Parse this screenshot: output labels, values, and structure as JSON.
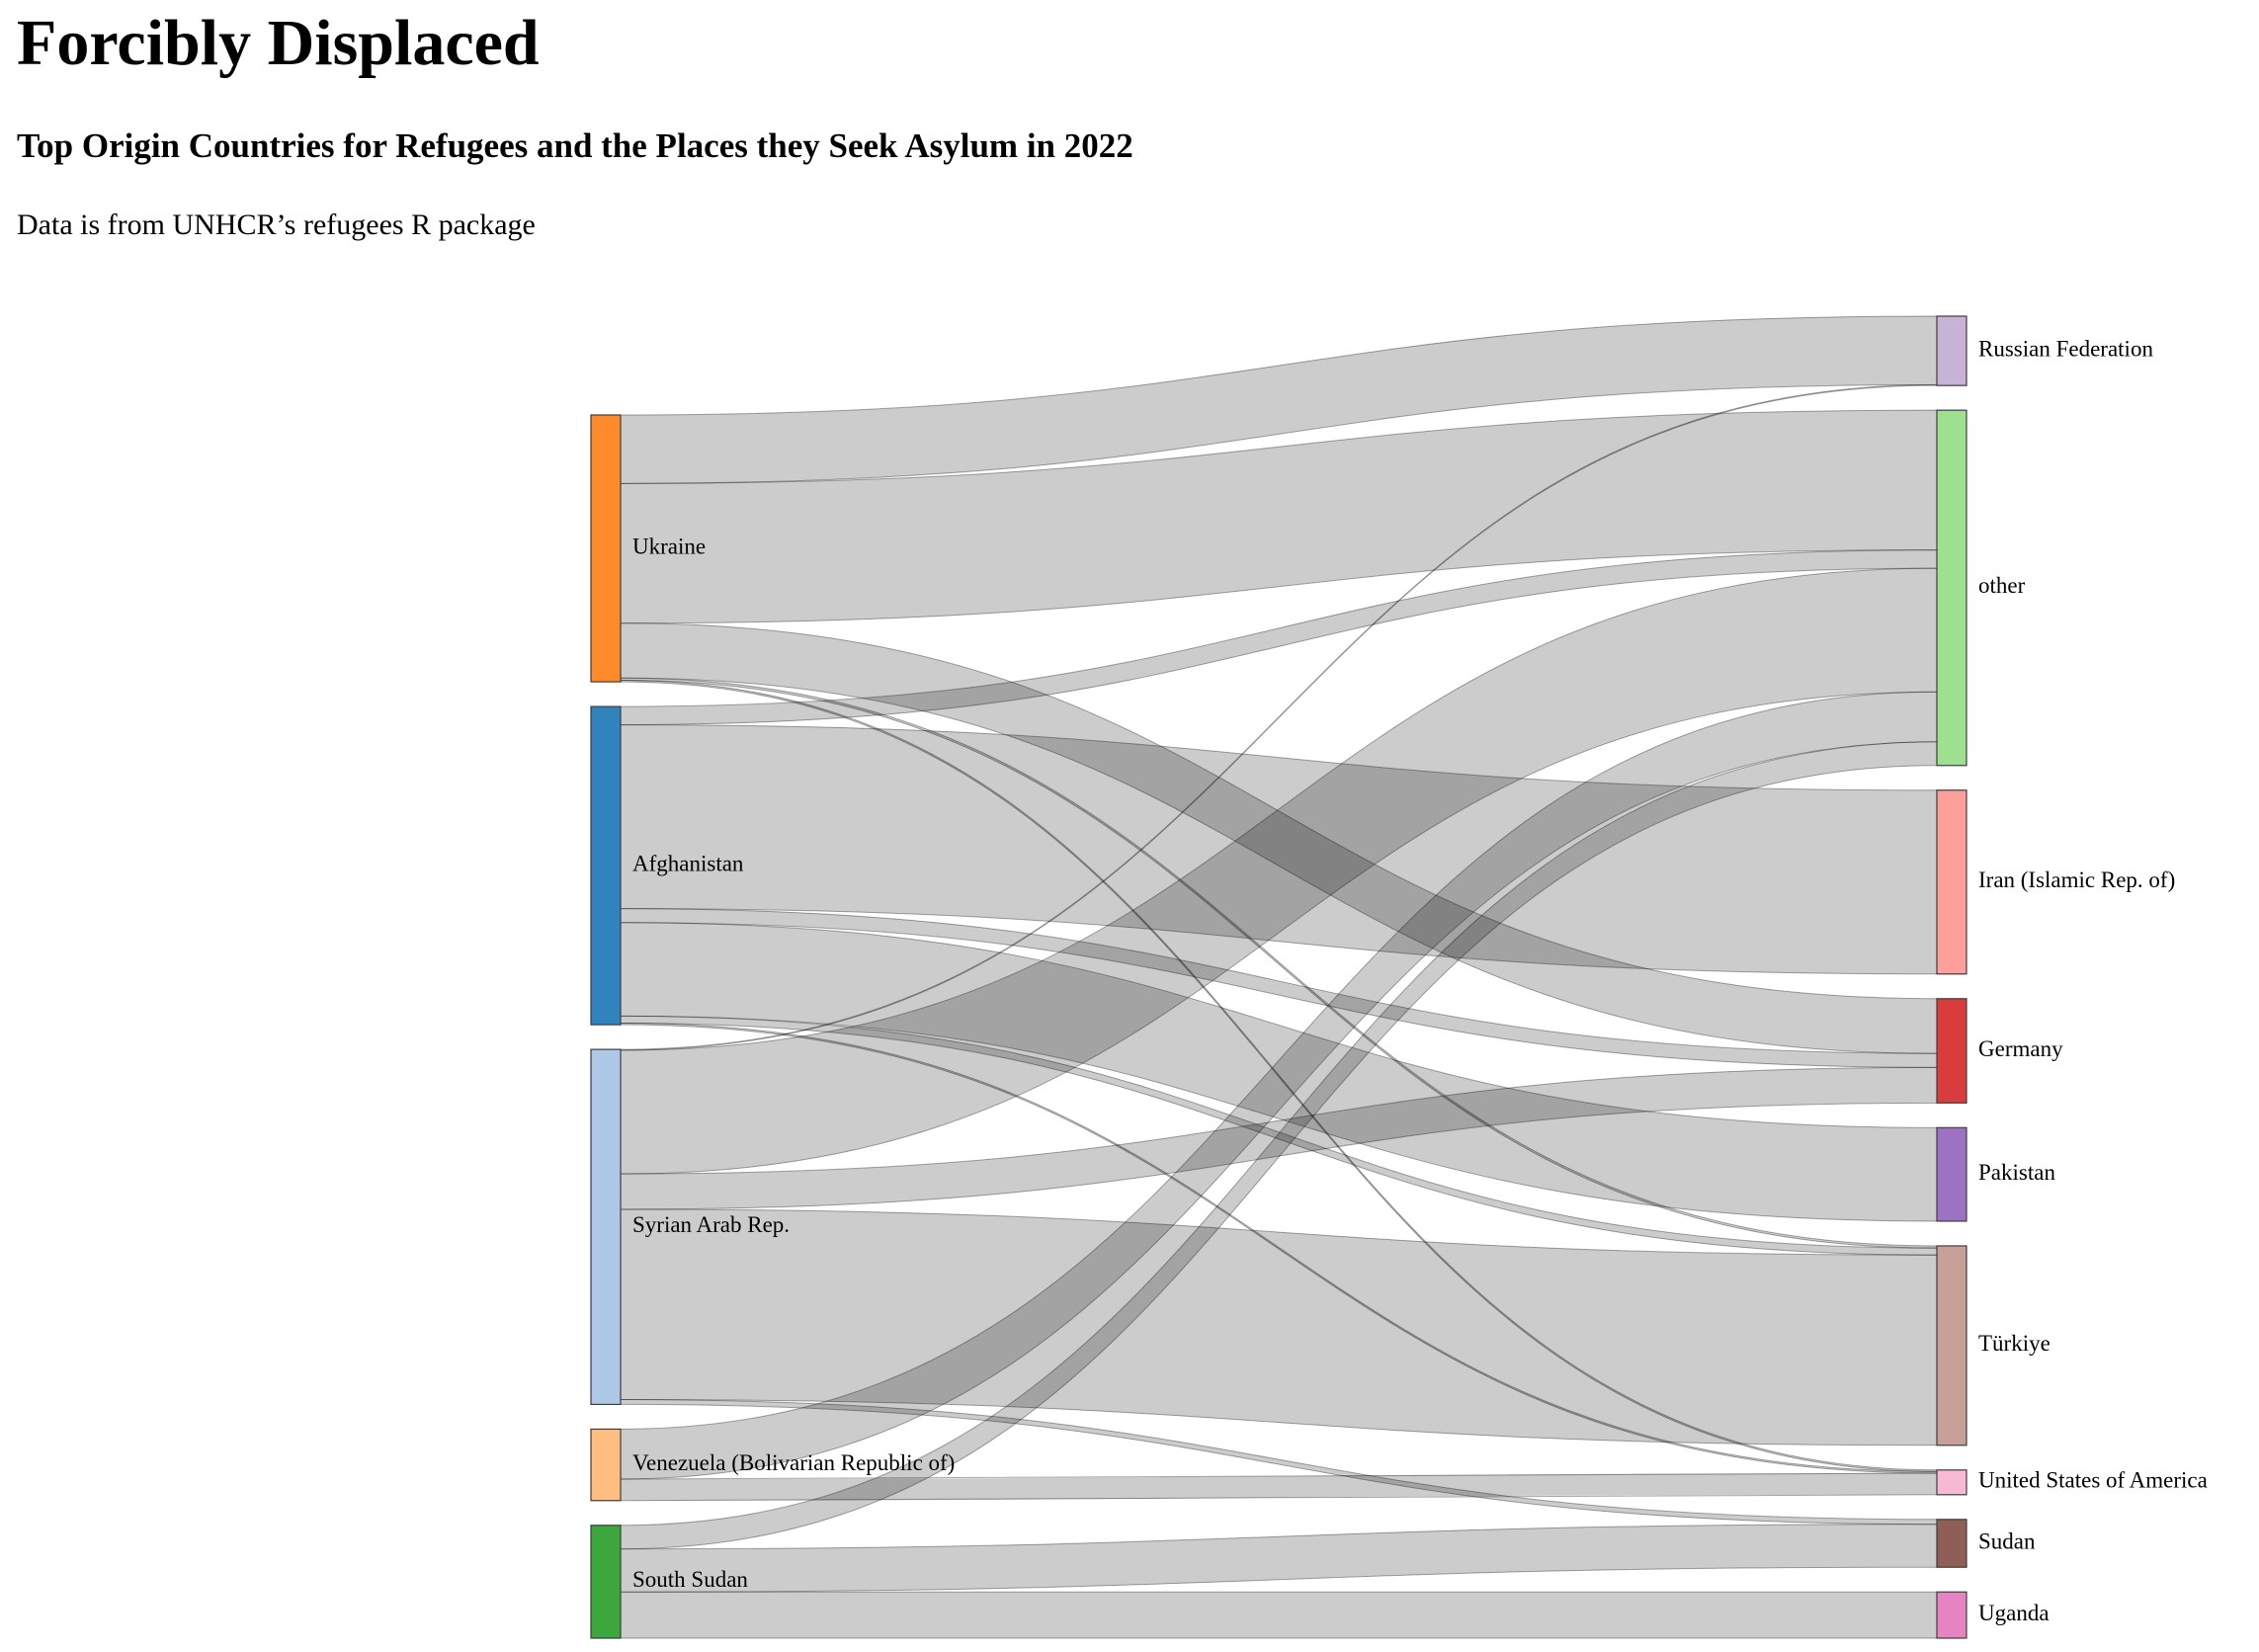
{
  "title": "Forcibly Displaced",
  "subtitle": "Top Origin Countries for Refugees and the Places they Seek Asylum in 2022",
  "caption": "Data is from UNHCR’s refugees R package",
  "chart_data": {
    "type": "sankey",
    "unit": "thousand people (approximate)",
    "sources": [
      {
        "name": "Ukraine",
        "color": "#ff8a2a"
      },
      {
        "name": "Afghanistan",
        "color": "#3183be"
      },
      {
        "name": "Syrian Arab Rep.",
        "color": "#aec9e8"
      },
      {
        "name": "Venezuela (Bolivarian Republic of)",
        "color": "#ffbd7f"
      },
      {
        "name": "South Sudan",
        "color": "#3ca73c"
      }
    ],
    "destinations": [
      {
        "name": "Russian Federation",
        "color": "#c7b3d5"
      },
      {
        "name": "other",
        "color": "#9ee08f"
      },
      {
        "name": "Iran (Islamic Rep. of)",
        "color": "#ff9f9b"
      },
      {
        "name": "Germany",
        "color": "#d83c3c"
      },
      {
        "name": "Pakistan",
        "color": "#9d72c5"
      },
      {
        "name": "Türkiye",
        "color": "#c7a097"
      },
      {
        "name": "United States of America",
        "color": "#f7b9d4"
      },
      {
        "name": "Sudan",
        "color": "#8f5e56"
      },
      {
        "name": "Uganda",
        "color": "#e683c3"
      }
    ],
    "links": [
      {
        "source": "Ukraine",
        "target": "Russian Federation",
        "value": 1275
      },
      {
        "source": "Ukraine",
        "target": "other",
        "value": 2600
      },
      {
        "source": "Ukraine",
        "target": "Germany",
        "value": 1020
      },
      {
        "source": "Ukraine",
        "target": "Türkiye",
        "value": 40
      },
      {
        "source": "Ukraine",
        "target": "United States of America",
        "value": 30
      },
      {
        "source": "Afghanistan",
        "target": "other",
        "value": 340
      },
      {
        "source": "Afghanistan",
        "target": "Iran (Islamic Rep. of)",
        "value": 3420
      },
      {
        "source": "Afghanistan",
        "target": "Germany",
        "value": 260
      },
      {
        "source": "Afghanistan",
        "target": "Pakistan",
        "value": 1740
      },
      {
        "source": "Afghanistan",
        "target": "Türkiye",
        "value": 130
      },
      {
        "source": "Afghanistan",
        "target": "United States of America",
        "value": 30
      },
      {
        "source": "Syrian Arab Rep.",
        "target": "other",
        "value": 2300
      },
      {
        "source": "Syrian Arab Rep.",
        "target": "Germany",
        "value": 660
      },
      {
        "source": "Syrian Arab Rep.",
        "target": "Türkiye",
        "value": 3540
      },
      {
        "source": "Syrian Arab Rep.",
        "target": "Sudan",
        "value": 90
      },
      {
        "source": "Syrian Arab Rep.",
        "target": "Russian Federation",
        "value": 15
      },
      {
        "source": "Venezuela (Bolivarian Republic of)",
        "target": "other",
        "value": 930
      },
      {
        "source": "Venezuela (Bolivarian Republic of)",
        "target": "United States of America",
        "value": 400
      },
      {
        "source": "South Sudan",
        "target": "other",
        "value": 440
      },
      {
        "source": "South Sudan",
        "target": "Sudan",
        "value": 800
      },
      {
        "source": "South Sudan",
        "target": "Uganda",
        "value": 860
      }
    ]
  }
}
